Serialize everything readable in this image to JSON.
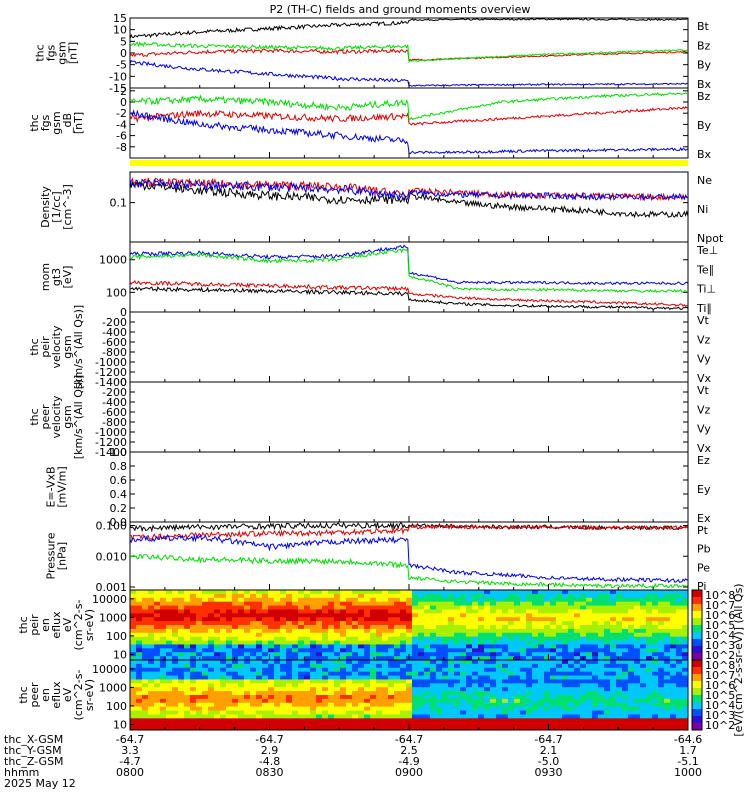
{
  "title": "P2 (TH-C) fields and ground moments overview",
  "colors": {
    "black": "#000000",
    "red": "#e00000",
    "green": "#00e000",
    "blue": "#0000ee",
    "yellow": "#ffff00"
  },
  "footer": {
    "rows": [
      {
        "label": "thc_X-GSM",
        "values": [
          "-64.7",
          "-64.7",
          "-64.7",
          "-64.7",
          "-64.6"
        ]
      },
      {
        "label": "thc_Y-GSM",
        "values": [
          "3.3",
          "2.9",
          "2.5",
          "2.1",
          "1.7"
        ]
      },
      {
        "label": "thc_Z-GSM",
        "values": [
          "-4.7",
          "-4.8",
          "-4.9",
          "-5.0",
          "-5.1"
        ]
      },
      {
        "label": "hhmm",
        "values": [
          "0800",
          "0830",
          "0900",
          "0930",
          "1000"
        ]
      }
    ],
    "date": "2025 May 12"
  },
  "chart_data": [
    {
      "type": "line",
      "id": "fgs",
      "ylabel": [
        "thc",
        "fgs",
        "gsm",
        "[nT]"
      ],
      "ylim": [
        -15,
        15
      ],
      "yticks": [
        "15",
        "10",
        "5",
        "0",
        "-5",
        "-10",
        "-15"
      ],
      "legend": [
        {
          "name": "Bt",
          "color": "black"
        },
        {
          "name": "Bz",
          "color": "red"
        },
        {
          "name": "By",
          "color": "green"
        },
        {
          "name": "Bx",
          "color": "blue"
        }
      ],
      "series": [
        {
          "name": "Bt",
          "color": "black",
          "x": [
            0,
            15,
            30,
            45,
            59.9,
            60,
            70,
            80,
            90,
            100,
            110,
            120
          ],
          "values": [
            7,
            9,
            10.5,
            12,
            13,
            14.2,
            14.3,
            14.4,
            14.5,
            14.4,
            14.3,
            14.3
          ]
        },
        {
          "name": "Bz",
          "color": "red",
          "x": [
            0,
            15,
            30,
            45,
            59.9,
            60,
            70,
            80,
            90,
            100,
            110,
            120
          ],
          "values": [
            -1,
            0.5,
            1,
            0.5,
            1,
            -3,
            -2.5,
            -1.8,
            -1.2,
            -0.5,
            0,
            0.5
          ]
        },
        {
          "name": "By",
          "color": "green",
          "x": [
            0,
            15,
            30,
            45,
            59.9,
            60,
            70,
            80,
            90,
            100,
            110,
            120
          ],
          "values": [
            4,
            3,
            2.5,
            2,
            3,
            -3.5,
            -2.5,
            -1.5,
            -0.5,
            0,
            0.8,
            1.2
          ]
        },
        {
          "name": "Bx",
          "color": "blue",
          "x": [
            0,
            15,
            30,
            45,
            59.9,
            60,
            70,
            80,
            90,
            100,
            110,
            120
          ],
          "values": [
            -4,
            -7,
            -9,
            -11,
            -12,
            -14,
            -13.8,
            -13.6,
            -13.5,
            -13.4,
            -13.3,
            -13.2
          ]
        }
      ]
    },
    {
      "type": "line",
      "id": "fgs_zoom",
      "ylabel": [
        "thc",
        "fgs",
        "gsm",
        "_dB",
        "[nT]"
      ],
      "ylim": [
        -10,
        2.5
      ],
      "yticks": [
        "2",
        "0",
        "-2",
        "-4",
        "-6",
        "-8"
      ],
      "legend": [
        {
          "name": "Bz",
          "color": "red"
        },
        {
          "name": "By",
          "color": "green"
        },
        {
          "name": "Bx",
          "color": "blue"
        }
      ],
      "series": [
        {
          "name": "Bz",
          "color": "red",
          "x": [
            0,
            15,
            30,
            45,
            59.9,
            60,
            70,
            80,
            90,
            100,
            110,
            120
          ],
          "values": [
            -3,
            -2,
            -2.5,
            -3,
            -2.5,
            -4,
            -3.5,
            -3,
            -2.5,
            -2,
            -1.5,
            -1
          ]
        },
        {
          "name": "By",
          "color": "green",
          "x": [
            0,
            15,
            30,
            45,
            59.9,
            60,
            70,
            80,
            90,
            100,
            110,
            120
          ],
          "values": [
            0,
            0.5,
            0,
            -1,
            0,
            -3,
            -1.5,
            0,
            0.5,
            1,
            1.3,
            1.5
          ]
        },
        {
          "name": "Bx",
          "color": "blue",
          "x": [
            0,
            15,
            30,
            45,
            59.9,
            60,
            70,
            80,
            90,
            100,
            110,
            120
          ],
          "values": [
            -2,
            -4,
            -5,
            -6,
            -7,
            -9,
            -9,
            -8.8,
            -8.7,
            -8.6,
            -8.5,
            -8.4
          ]
        }
      ]
    },
    {
      "type": "line",
      "id": "density",
      "yscale": "log",
      "ylabel": [
        "Density",
        "[1/cc]",
        "[cm^-3]"
      ],
      "ylim": [
        0.01,
        0.6
      ],
      "ytick_values": [
        0.1
      ],
      "yticks": [
        "0.1"
      ],
      "legend": [
        {
          "name": "Ne",
          "color": "red"
        },
        {
          "name": "Ni",
          "color": "black"
        },
        {
          "name": "Npot",
          "color": "blue"
        }
      ],
      "series": [
        {
          "name": "Ne",
          "color": "red",
          "x": [
            0,
            15,
            30,
            45,
            59.9,
            60,
            70,
            80,
            90,
            100,
            110,
            120
          ],
          "values": [
            0.35,
            0.3,
            0.28,
            0.25,
            0.15,
            0.2,
            0.18,
            0.16,
            0.15,
            0.15,
            0.14,
            0.14
          ]
        },
        {
          "name": "Ni",
          "color": "black",
          "x": [
            0,
            15,
            30,
            45,
            59.9,
            60,
            70,
            80,
            90,
            100,
            110,
            120
          ],
          "values": [
            0.3,
            0.2,
            0.15,
            0.12,
            0.12,
            0.15,
            0.1,
            0.08,
            0.07,
            0.06,
            0.05,
            0.05
          ]
        },
        {
          "name": "Npot",
          "color": "blue",
          "x": [
            0,
            15,
            30,
            45,
            59.9,
            60,
            70,
            80,
            90,
            100,
            110,
            120
          ],
          "values": [
            0.32,
            0.27,
            0.25,
            0.22,
            0.14,
            0.18,
            0.16,
            0.15,
            0.15,
            0.14,
            0.14,
            0.14
          ]
        }
      ]
    },
    {
      "type": "line",
      "id": "temperature",
      "yscale": "log",
      "ylabel": [
        "mom",
        "gt3",
        "[eV]"
      ],
      "ylim": [
        25,
        3500
      ],
      "ytick_values": [
        1000,
        100
      ],
      "yticks": [
        "1000",
        "100"
      ],
      "legend": [
        {
          "name": "Te⊥",
          "color": "red"
        },
        {
          "name": "Te∥",
          "color": "black"
        },
        {
          "name": "Ti⊥",
          "color": "blue"
        },
        {
          "name": "Ti∥",
          "color": "green"
        }
      ],
      "series": [
        {
          "name": "Ti⊥",
          "color": "blue",
          "x": [
            0,
            15,
            30,
            45,
            59.9,
            60,
            70,
            80,
            90,
            100,
            110,
            120
          ],
          "values": [
            1500,
            1600,
            1200,
            1300,
            2500,
            400,
            200,
            200,
            200,
            190,
            190,
            190
          ]
        },
        {
          "name": "Ti∥",
          "color": "green",
          "x": [
            0,
            15,
            30,
            45,
            59.9,
            60,
            70,
            80,
            90,
            100,
            110,
            120
          ],
          "values": [
            1200,
            1400,
            900,
            1000,
            2000,
            300,
            130,
            120,
            120,
            115,
            110,
            110
          ]
        },
        {
          "name": "Te⊥",
          "color": "red",
          "x": [
            0,
            15,
            30,
            45,
            59.9,
            60,
            70,
            80,
            90,
            100,
            110,
            120
          ],
          "values": [
            200,
            180,
            160,
            140,
            130,
            90,
            70,
            60,
            55,
            50,
            45,
            40
          ]
        },
        {
          "name": "Te∥",
          "color": "black",
          "x": [
            0,
            15,
            30,
            45,
            59.9,
            60,
            70,
            80,
            90,
            100,
            110,
            120
          ],
          "values": [
            130,
            120,
            110,
            100,
            90,
            60,
            45,
            40,
            38,
            36,
            34,
            32
          ]
        }
      ]
    },
    {
      "type": "line",
      "id": "peir_velocity",
      "ylabel": [
        "thc",
        "peir",
        "velocity",
        "gsm",
        "[km/s^(All Qs)]"
      ],
      "ylim": [
        -1400,
        0
      ],
      "yticks": [
        "0",
        "-200",
        "-400",
        "-600",
        "-800",
        "-1000",
        "-1200",
        "-1400"
      ],
      "legend": [
        {
          "name": "Vt",
          "color": "black"
        },
        {
          "name": "Vz",
          "color": "red"
        },
        {
          "name": "Vy",
          "color": "green"
        },
        {
          "name": "Vx",
          "color": "blue"
        }
      ],
      "series": []
    },
    {
      "type": "line",
      "id": "peer_velocity",
      "ylabel": [
        "thc",
        "peer",
        "velocity",
        "gsm",
        "[km/s^(All Qs)]"
      ],
      "ylim": [
        -1400,
        0
      ],
      "yticks": [
        "0",
        "-200",
        "-400",
        "-600",
        "-800",
        "-1000",
        "-1200",
        "-1400"
      ],
      "legend": [
        {
          "name": "Vt",
          "color": "black"
        },
        {
          "name": "Vz",
          "color": "red"
        },
        {
          "name": "Vy",
          "color": "green"
        },
        {
          "name": "Vx",
          "color": "blue"
        }
      ],
      "series": []
    },
    {
      "type": "line",
      "id": "efield",
      "ylabel": [
        "E=-VxB",
        "[mV/m]"
      ],
      "ylim": [
        0,
        1
      ],
      "yticks": [
        "1.0",
        "0.8",
        "0.6",
        "0.4",
        "0.2",
        "0.0"
      ],
      "legend": [
        {
          "name": "Ez",
          "color": "red"
        },
        {
          "name": "Ey",
          "color": "green"
        },
        {
          "name": "Ex",
          "color": "blue"
        }
      ],
      "series": []
    },
    {
      "type": "line",
      "id": "pressure",
      "yscale": "log",
      "ylabel": [
        "Pressure",
        "[nPa]"
      ],
      "ylim": [
        0.0008,
        0.13
      ],
      "ytick_values": [
        0.1,
        0.01,
        0.001
      ],
      "yticks": [
        "0.100",
        "0.010",
        "0.001"
      ],
      "legend": [
        {
          "name": "Pt",
          "color": "black"
        },
        {
          "name": "Pb",
          "color": "red"
        },
        {
          "name": "Pe",
          "color": "green"
        },
        {
          "name": "Pi",
          "color": "blue"
        }
      ],
      "series": [
        {
          "name": "Pt",
          "color": "black",
          "x": [
            0,
            15,
            30,
            45,
            59.9,
            60,
            70,
            80,
            90,
            100,
            110,
            120
          ],
          "values": [
            0.08,
            0.09,
            0.095,
            0.1,
            0.1,
            0.1,
            0.095,
            0.09,
            0.09,
            0.085,
            0.085,
            0.085
          ]
        },
        {
          "name": "Pb",
          "color": "red",
          "x": [
            0,
            15,
            30,
            45,
            59.9,
            60,
            70,
            80,
            90,
            100,
            110,
            120
          ],
          "values": [
            0.04,
            0.05,
            0.055,
            0.06,
            0.07,
            0.09,
            0.09,
            0.088,
            0.087,
            0.086,
            0.085,
            0.085
          ]
        },
        {
          "name": "Pi",
          "color": "blue",
          "x": [
            0,
            15,
            30,
            45,
            59.9,
            60,
            70,
            80,
            90,
            100,
            110,
            120
          ],
          "values": [
            0.035,
            0.04,
            0.02,
            0.03,
            0.035,
            0.005,
            0.003,
            0.0025,
            0.002,
            0.0018,
            0.0017,
            0.0016
          ]
        },
        {
          "name": "Pe",
          "color": "green",
          "x": [
            0,
            15,
            30,
            45,
            59.9,
            60,
            70,
            80,
            90,
            100,
            110,
            120
          ],
          "values": [
            0.01,
            0.008,
            0.007,
            0.007,
            0.005,
            0.002,
            0.0015,
            0.0013,
            0.0012,
            0.0011,
            0.0011,
            0.0011
          ]
        }
      ]
    },
    {
      "type": "heatmap",
      "id": "peir_spectrogram",
      "ylabel": [
        "thc",
        "peir",
        "en",
        "eflux",
        "eV",
        "(cm^2-s-",
        "sr-eV)"
      ],
      "yticks": [
        "10000",
        "1000",
        "100",
        "10"
      ],
      "colorbar": {
        "ticks": [
          "10^8",
          "10^7",
          "10^6",
          "10^5",
          "10^4",
          "10^3",
          "10^2"
        ],
        "label": "[eV/(cm^2-s-sr-eV)] (All Qs)"
      }
    },
    {
      "type": "heatmap",
      "id": "peer_spectrogram",
      "ylabel": [
        "thc",
        "peer",
        "en",
        "eflux",
        "eV",
        "(cm^2-s-",
        "sr-eV)"
      ],
      "yticks": [
        "10000",
        "1000",
        "100",
        "10"
      ],
      "colorbar": {
        "ticks": [
          "10^8",
          "10^7",
          "10^6",
          "10^5",
          "10^4",
          "10^3",
          "10^2"
        ],
        "label": "[eV/(cm^2-s-sr-eV)] (All Qs)"
      }
    }
  ]
}
